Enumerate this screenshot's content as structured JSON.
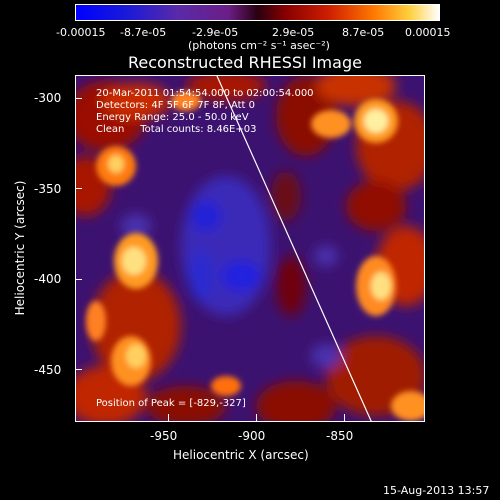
{
  "colorbar": {
    "tick_labels": [
      "-0.00015",
      "-8.7e-05",
      "-2.9e-05",
      "2.9e-05",
      "8.7e-05",
      "0.00015"
    ],
    "units": "(photons cm⁻² s⁻¹ asec⁻²)"
  },
  "title": "Reconstructed RHESSI Image",
  "annotations": {
    "line1": "20-Mar-2011 01:54:54.000 to 02:00:54.000",
    "line2": "Detectors: 4F 5F 6F 7F 8F, Att 0",
    "line3": "Energy Range: 25.0 - 50.0 keV",
    "line4": "Clean     Total counts: 8.46E+03",
    "peak": "Position of Peak = [-829,-327]"
  },
  "axes": {
    "x_label": "Heliocentric X (arcsec)",
    "y_label": "Heliocentric Y (arcsec)",
    "x_ticks": [
      "-950",
      "-900",
      "-850"
    ],
    "y_ticks": [
      "-300",
      "-350",
      "-400",
      "-450"
    ]
  },
  "footer": {
    "timestamp": "15-Aug-2013 13:57"
  },
  "colors": {
    "background": "#000000",
    "plot_background": "#3c1270",
    "axis": "#ffffff"
  }
}
